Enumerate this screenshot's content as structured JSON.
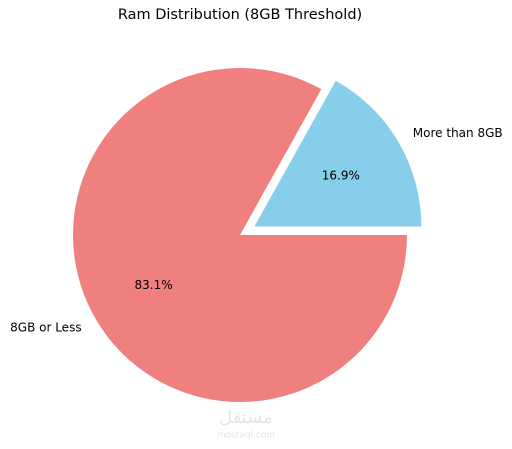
{
  "chart_data": {
    "type": "pie",
    "title": "Ram Distribution (8GB Threshold)",
    "categories": [
      "More than 8GB",
      "8GB or Less"
    ],
    "values": [
      16.9,
      83.1
    ],
    "value_labels": [
      "16.9%",
      "83.1%"
    ],
    "colors": [
      "#87ceeb",
      "#f08080"
    ],
    "explode": [
      0.1,
      0
    ],
    "start_angle": 0
  },
  "watermark": {
    "arabic": "مستقل",
    "latin": "mostaql.com"
  }
}
